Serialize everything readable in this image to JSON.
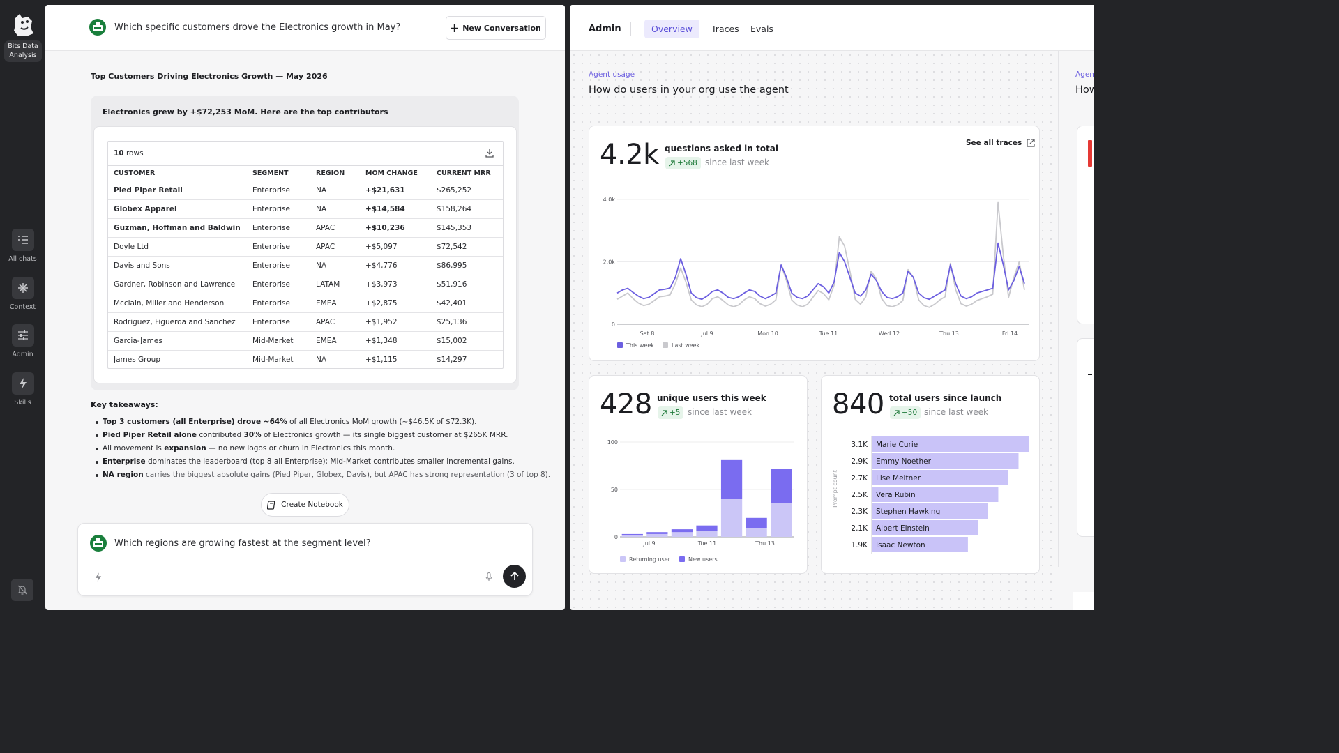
{
  "rail": {
    "logo_label": "Bits Data\nAnalysis",
    "items": [
      {
        "label": "All chats",
        "icon": "list-icon"
      },
      {
        "label": "Context",
        "icon": "asterisk-icon"
      },
      {
        "label": "Admin",
        "icon": "sliders-icon"
      },
      {
        "label": "Skills",
        "icon": "bolt-icon"
      }
    ]
  },
  "chat": {
    "question": "Which specific customers drove the Electronics growth in May?",
    "new_conversation": "New Conversation",
    "result_title": "Top Customers Driving Electronics Growth — May 2026",
    "lead": "Electronics grew by +$72,253 MoM. Here are the top contributors",
    "rows_count_num": "10",
    "rows_count_word": "rows",
    "table": {
      "headers": [
        "CUSTOMER",
        "SEGMENT",
        "REGION",
        "MOM CHANGE",
        "CURRENT MRR"
      ],
      "rows": [
        {
          "customer": "Pied Piper Retail",
          "segment": "Enterprise",
          "region": "NA",
          "mom": "+$21,631",
          "mrr": "$265,252",
          "bold": true
        },
        {
          "customer": "Globex Apparel",
          "segment": "Enterprise",
          "region": "NA",
          "mom": "+$14,584",
          "mrr": "$158,264",
          "bold": true
        },
        {
          "customer": "Guzman, Hoffman and Baldwin",
          "segment": "Enterprise",
          "region": "APAC",
          "mom": "+$10,236",
          "mrr": "$145,353",
          "bold": true
        },
        {
          "customer": "Doyle Ltd",
          "segment": "Enterprise",
          "region": "APAC",
          "mom": "+$5,097",
          "mrr": "$72,542",
          "bold": false
        },
        {
          "customer": "Davis and Sons",
          "segment": "Enterprise",
          "region": "NA",
          "mom": "+$4,776",
          "mrr": "$86,995",
          "bold": false
        },
        {
          "customer": "Gardner, Robinson and Lawrence",
          "segment": "Enterprise",
          "region": "LATAM",
          "mom": "+$3,973",
          "mrr": "$51,916",
          "bold": false
        },
        {
          "customer": "Mcclain, Miller and Henderson",
          "segment": "Enterprise",
          "region": "EMEA",
          "mom": "+$2,875",
          "mrr": "$42,401",
          "bold": false
        },
        {
          "customer": "Rodriguez, Figueroa and Sanchez",
          "segment": "Enterprise",
          "region": "APAC",
          "mom": "+$1,952",
          "mrr": "$25,136",
          "bold": false
        },
        {
          "customer": "Garcia-James",
          "segment": "Mid-Market",
          "region": "EMEA",
          "mom": "+$1,348",
          "mrr": "$15,002",
          "bold": false
        },
        {
          "customer": "James Group",
          "segment": "Mid-Market",
          "region": "NA",
          "mom": "+$1,115",
          "mrr": "$14,297",
          "bold": false
        }
      ]
    },
    "takeaways_title": "Key takeaways:",
    "takeaways": [
      [
        {
          "t": "Top 3 customers (all Enterprise) drove ~64%",
          "b": true
        },
        {
          "t": " of all Electronics MoM growth (~$46.5K of $72.3K).",
          "b": false
        }
      ],
      [
        {
          "t": "Pied Piper Retail alone",
          "b": true
        },
        {
          "t": " contributed ",
          "b": false
        },
        {
          "t": "30%",
          "b": true
        },
        {
          "t": " of Electronics growth — its single biggest customer at $265K MRR.",
          "b": false
        }
      ],
      [
        {
          "t": "All movement is ",
          "b": false
        },
        {
          "t": "expansion",
          "b": true
        },
        {
          "t": " — no new logos or churn in Electronics this month.",
          "b": false
        }
      ],
      [
        {
          "t": "Enterprise",
          "b": true
        },
        {
          "t": " dominates the leaderboard (top 8 all Enterprise); Mid-Market contributes smaller incremental gains.",
          "b": false
        }
      ],
      [
        {
          "t": "NA region",
          "b": true
        },
        {
          "t": " carries the biggest absolute gains (Pied Piper, Globex, Davis), but APAC has strong representation (3 of top 8).",
          "b": false
        }
      ]
    ],
    "create_notebook": "Create Notebook",
    "composer_text": "Which regions are growing fastest at the segment level?"
  },
  "admin": {
    "label": "Admin",
    "tabs": [
      "Overview",
      "Traces",
      "Evals"
    ],
    "active_tab": "Overview",
    "kicker": "Agent usage",
    "title": "How do users in your org use the agent",
    "next_kicker": "Agen",
    "next_title": "How",
    "accent": "#6c5fe0",
    "questions": {
      "value": "4.2k",
      "label": "questions asked in total",
      "delta": "+568",
      "since": "since last week",
      "see_all": "See all traces"
    },
    "unique": {
      "value": "428",
      "label": "unique users this week",
      "delta": "+5",
      "since": "since last week"
    },
    "total": {
      "value": "840",
      "label": "total users since launch",
      "delta": "+50",
      "since": "since last week"
    }
  },
  "chart_data": [
    {
      "type": "line",
      "ylim": [
        0,
        4000
      ],
      "yticks": [
        "4.0k",
        "2.0k",
        "0"
      ],
      "xticks": [
        "Sat 8",
        "Jul 9",
        "Mon 10",
        "Tue 11",
        "Wed 12",
        "Thu 13",
        "Fri 14"
      ],
      "series": [
        {
          "name": "This week",
          "color": "#6c5fe0",
          "values": [
            1000,
            1100,
            1150,
            1020,
            900,
            820,
            860,
            980,
            1100,
            1120,
            1160,
            1500,
            2100,
            1600,
            1000,
            850,
            800,
            900,
            1050,
            1100,
            1000,
            860,
            820,
            880,
            1000,
            1100,
            1050,
            900,
            820,
            900,
            1000,
            1900,
            1500,
            1000,
            860,
            820,
            900,
            1100,
            1300,
            1200,
            1000,
            1350,
            2300,
            2000,
            1500,
            1000,
            900,
            1100,
            1600,
            1400,
            1050,
            860,
            820,
            880,
            1000,
            1700,
            1500,
            1000,
            850,
            800,
            900,
            1000,
            1100,
            1900,
            1300,
            900,
            820,
            880,
            1000,
            1050,
            1100,
            1150,
            2600,
            1900,
            1100,
            1400,
            1850,
            1300
          ]
        },
        {
          "name": "Last week",
          "color": "#c9c9cd",
          "values": [
            800,
            900,
            1000,
            820,
            680,
            600,
            640,
            760,
            880,
            900,
            940,
            1300,
            1800,
            1350,
            780,
            620,
            560,
            640,
            820,
            880,
            760,
            620,
            560,
            620,
            780,
            880,
            820,
            660,
            580,
            640,
            780,
            1900,
            1400,
            780,
            620,
            560,
            640,
            860,
            1080,
            980,
            780,
            1250,
            2800,
            2500,
            1700,
            800,
            640,
            880,
            1700,
            1450,
            820,
            600,
            560,
            620,
            760,
            1750,
            1500,
            780,
            600,
            540,
            640,
            780,
            880,
            1950,
            1100,
            660,
            580,
            640,
            760,
            820,
            880,
            960,
            3900,
            2200,
            860,
            1500,
            2000,
            1100
          ]
        }
      ]
    },
    {
      "type": "bar",
      "ylim": [
        0,
        100
      ],
      "yticks": [
        "100",
        "50",
        "0"
      ],
      "xticks": [
        "Jul 9",
        "Tue 11",
        "Thu 13"
      ],
      "series": [
        {
          "name": "Returning user",
          "color": "#cbc6f7",
          "values": [
            2,
            3,
            5,
            6,
            40,
            9,
            36
          ]
        },
        {
          "name": "New users",
          "color": "#7a6cf0",
          "values": [
            1,
            2,
            3,
            6,
            41,
            11,
            36
          ]
        }
      ]
    },
    {
      "type": "bar",
      "orientation": "horizontal",
      "ylabel": "Prompt count",
      "categories": [
        "Marie Curie",
        "Emmy Noether",
        "Lise Meitner",
        "Vera Rubin",
        "Stephen Hawking",
        "Albert Einstein",
        "Isaac Newton"
      ],
      "labels": [
        "3.1K",
        "2.9K",
        "2.7K",
        "2.5K",
        "2.3K",
        "2.1K",
        "1.9K"
      ],
      "values": [
        3100,
        2900,
        2700,
        2500,
        2300,
        2100,
        1900
      ],
      "color": "#c9c3f8"
    }
  ]
}
